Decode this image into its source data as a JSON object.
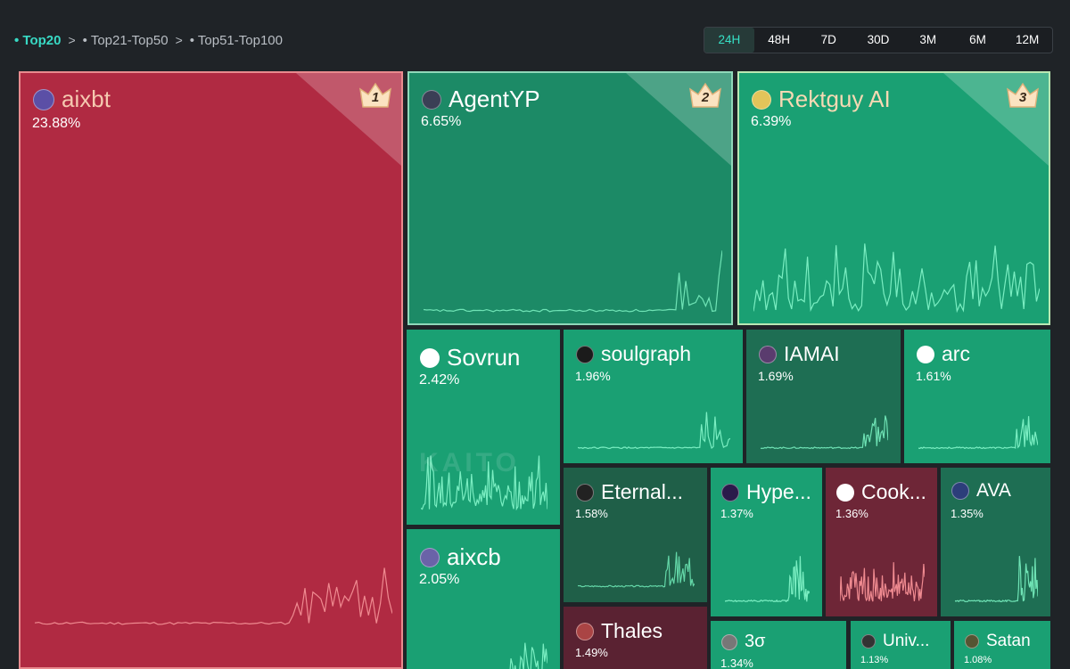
{
  "breadcrumb": {
    "items": [
      "• Top20",
      "• Top21-Top50",
      "• Top51-Top100"
    ],
    "separator": ">"
  },
  "time_ranges": {
    "options": [
      "24H",
      "48H",
      "7D",
      "30D",
      "3M",
      "6M",
      "12M"
    ],
    "selected": "24H"
  },
  "watermark": "KAITO",
  "colors": {
    "red": "#b02a42",
    "dark_red": "#6e2637",
    "darker_red": "#5a2232",
    "green": "#1aa073",
    "mid_green": "#1c8a66",
    "dark_green": "#1e6e53",
    "darker_green": "#1f5f48",
    "accent_teal": "#36e0c5"
  },
  "tiles": [
    {
      "name": "aixbt",
      "pct": "23.88%",
      "rank": "1",
      "icon": "aixbt-avatar-icon"
    },
    {
      "name": "AgentYP",
      "pct": "6.65%",
      "rank": "2",
      "icon": "agentyp-avatar-icon"
    },
    {
      "name": "Rektguy AI",
      "pct": "6.39%",
      "rank": "3",
      "icon": "rektguy-avatar-icon"
    },
    {
      "name": "Sovrun",
      "pct": "2.42%",
      "icon": "sovrun-logo-icon"
    },
    {
      "name": "soulgraph",
      "pct": "1.96%",
      "icon": "soulgraph-logo-icon"
    },
    {
      "name": "IAMAI",
      "pct": "1.69%",
      "icon": "iamai-avatar-icon"
    },
    {
      "name": "arc",
      "pct": "1.61%",
      "icon": "arc-logo-icon"
    },
    {
      "name": "aixcb",
      "pct": "2.05%",
      "icon": "aixcb-logo-icon"
    },
    {
      "name": "Eternal...",
      "pct": "1.58%",
      "icon": "eternal-logo-icon"
    },
    {
      "name": "Hype...",
      "pct": "1.37%",
      "icon": "hype-logo-icon"
    },
    {
      "name": "Cook...",
      "pct": "1.36%",
      "icon": "cook-logo-icon"
    },
    {
      "name": "AVA",
      "pct": "1.35%",
      "icon": "ava-avatar-icon"
    },
    {
      "name": "Thales",
      "pct": "1.49%",
      "icon": "thales-avatar-icon"
    },
    {
      "name": "3σ",
      "pct": "1.34%",
      "icon": "3sigma-avatar-icon"
    },
    {
      "name": "Univ...",
      "pct": "1.13%",
      "icon": "univ-logo-icon"
    },
    {
      "name": "Satan",
      "pct": "1.08%",
      "icon": "satan-avatar-icon"
    }
  ]
}
